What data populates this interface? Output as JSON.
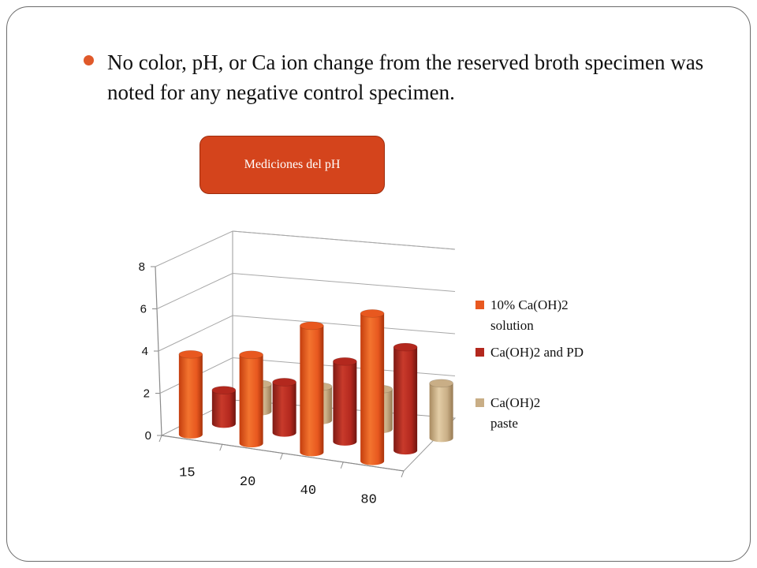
{
  "slide": {
    "bullet_text": "No color, pH, or Ca ion change from the reserved broth specimen was noted for any negative control specimen.",
    "title_button": "Mediciones del pH"
  },
  "chart_data": {
    "type": "bar",
    "style": "3d-cylinder-clustered",
    "title": "Mediciones del pH",
    "categories": [
      "15",
      "20",
      "40",
      "80"
    ],
    "ylim": [
      0,
      8
    ],
    "yticks": [
      0,
      2,
      4,
      6,
      8
    ],
    "grid": true,
    "legend_position": "right",
    "series": [
      {
        "name": "10% Ca(OH)2 solution",
        "legend_lines": [
          "10% Ca(OH)2",
          "solution"
        ],
        "color": "#e8581f",
        "values": [
          3.8,
          4.2,
          6.0,
          7.0
        ]
      },
      {
        "name": "Ca(OH)2 and PD",
        "legend_lines": [
          "Ca(OH)2 and PD"
        ],
        "color": "#b3281e",
        "values": [
          1.6,
          2.4,
          3.8,
          4.9
        ]
      },
      {
        "name": "Ca(OH)2 paste",
        "legend_lines": [
          "Ca(OH)2",
          "paste"
        ],
        "color": "#c9ae86",
        "values": [
          1.3,
          1.6,
          1.9,
          2.6
        ]
      }
    ]
  }
}
